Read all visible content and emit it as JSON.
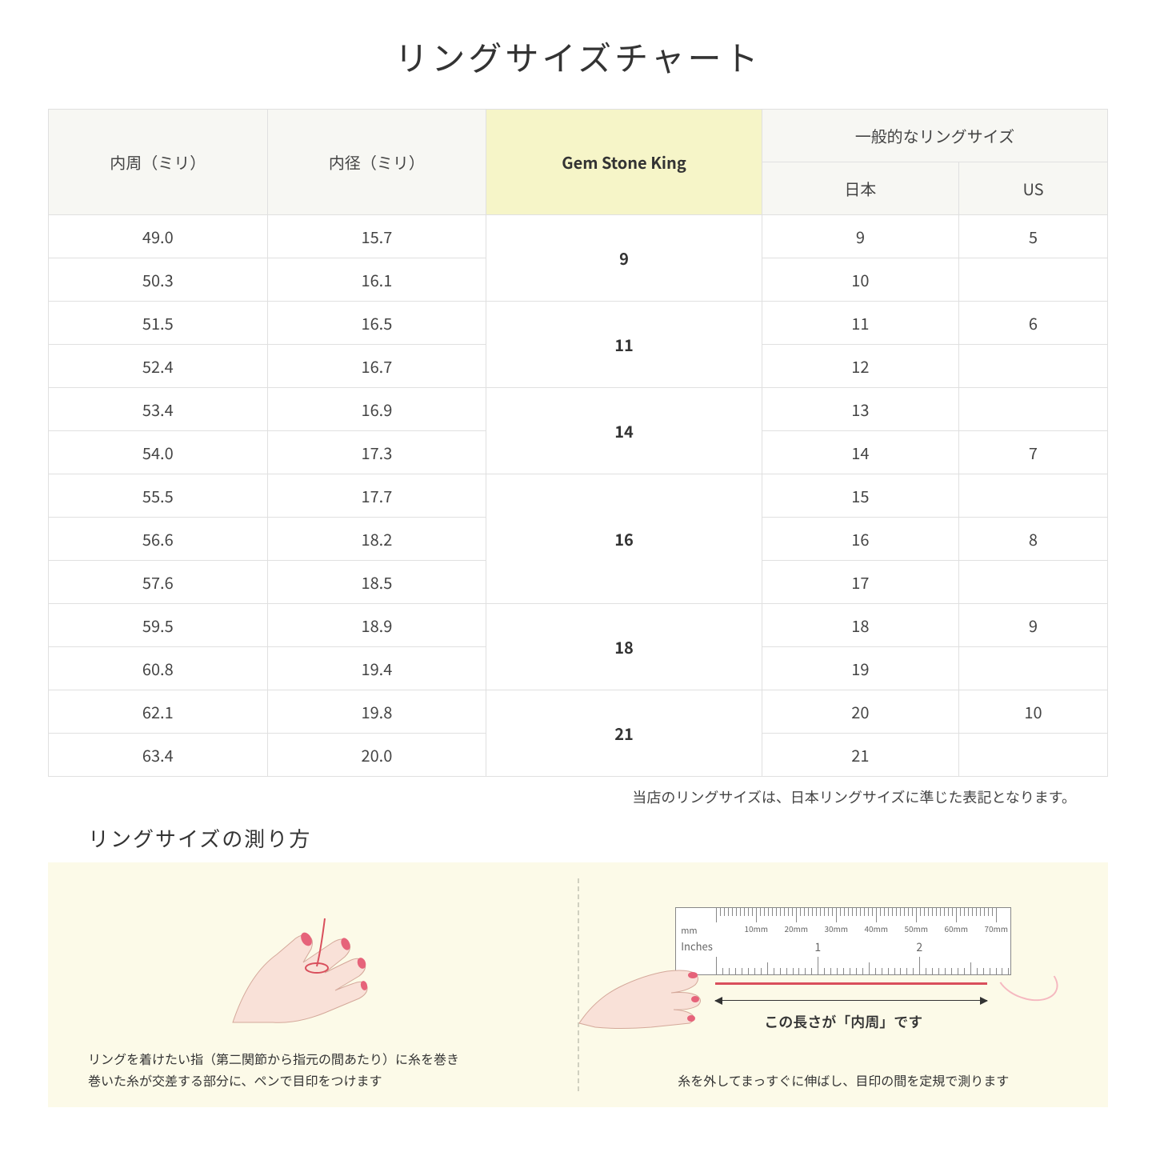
{
  "title": "リングサイズチャート",
  "table": {
    "headers": {
      "col1": "内周（ミリ）",
      "col2": "内径（ミリ）",
      "col3": "Gem Stone King",
      "col4_group": "一般的なリングサイズ",
      "col4a": "日本",
      "col4b": "US"
    },
    "groups": [
      {
        "gsk": "9",
        "rows": [
          {
            "circ": "49.0",
            "dia": "15.7",
            "jp": "9",
            "us": "5"
          },
          {
            "circ": "50.3",
            "dia": "16.1",
            "jp": "10",
            "us": ""
          }
        ]
      },
      {
        "gsk": "11",
        "rows": [
          {
            "circ": "51.5",
            "dia": "16.5",
            "jp": "11",
            "us": "6"
          },
          {
            "circ": "52.4",
            "dia": "16.7",
            "jp": "12",
            "us": ""
          }
        ]
      },
      {
        "gsk": "14",
        "rows": [
          {
            "circ": "53.4",
            "dia": "16.9",
            "jp": "13",
            "us": ""
          },
          {
            "circ": "54.0",
            "dia": "17.3",
            "jp": "14",
            "us": "7"
          }
        ]
      },
      {
        "gsk": "16",
        "rows": [
          {
            "circ": "55.5",
            "dia": "17.7",
            "jp": "15",
            "us": ""
          },
          {
            "circ": "56.6",
            "dia": "18.2",
            "jp": "16",
            "us": "8"
          },
          {
            "circ": "57.6",
            "dia": "18.5",
            "jp": "17",
            "us": ""
          }
        ]
      },
      {
        "gsk": "18",
        "rows": [
          {
            "circ": "59.5",
            "dia": "18.9",
            "jp": "18",
            "us": "9"
          },
          {
            "circ": "60.8",
            "dia": "19.4",
            "jp": "19",
            "us": ""
          }
        ]
      },
      {
        "gsk": "21",
        "rows": [
          {
            "circ": "62.1",
            "dia": "19.8",
            "jp": "20",
            "us": "10"
          },
          {
            "circ": "63.4",
            "dia": "20.0",
            "jp": "21",
            "us": ""
          }
        ]
      }
    ]
  },
  "note": "当店のリングサイズは、日本リングサイズに準じた表記となります。",
  "subtitle": "リングサイズの測り方",
  "instructions": {
    "left_caption": "リングを着けたい指（第二関節から指元の間あたり）に糸を巻き\n巻いた糸が交差する部分に、ペンで目印をつけます",
    "right_measure_label": "この長さが「内周」です",
    "right_caption": "糸を外してまっすぐに伸ばし、目印の間を定規で測ります"
  },
  "ruler": {
    "mm_label": "mm",
    "in_label": "Inches",
    "mm_marks": [
      "10mm",
      "20mm",
      "30mm",
      "40mm",
      "50mm",
      "60mm",
      "70mm"
    ],
    "in_marks": [
      "1",
      "2"
    ]
  },
  "colors": {
    "header_bg": "#f7f7f3",
    "highlight_bg": "#f6f5c8",
    "border": "#e0e0e0",
    "panel_bg": "#fcfae8",
    "thread": "#d94f5c",
    "skin": "#f9e1d8",
    "nail": "#e6637a"
  }
}
